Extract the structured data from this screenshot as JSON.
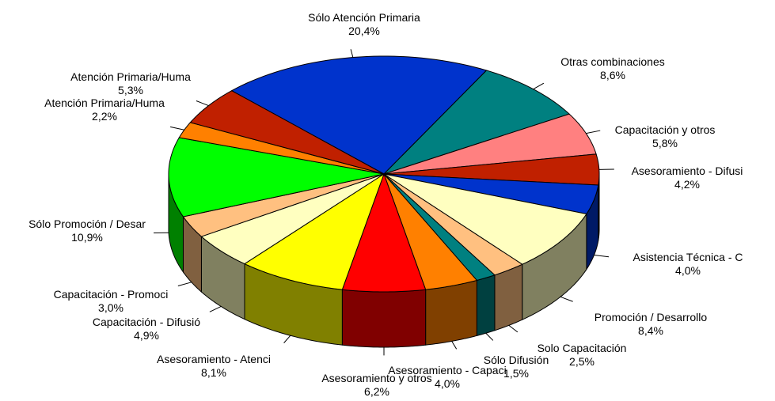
{
  "chart_data": {
    "type": "pie3d",
    "categories": [
      "Sólo Atención Primaria",
      "Otras combinaciones",
      "Capacitación y otros",
      "Asesoramiento - Difusi",
      "Asistencia Técnica - C",
      "Promoción / Desarrollo",
      "Solo Capacitación",
      "Sólo Difusión",
      "Asesoramiento - Capaci",
      "Asesoramiento y otros",
      "Asesoramiento - Atenci",
      "Capacitación - Difusió",
      "Capacitación - Promoci",
      "Sólo Promoción / Desar",
      "Atención Primaria/Huma",
      "Atención Primaria/Huma"
    ],
    "values": [
      20.4,
      8.6,
      5.8,
      4.2,
      4.0,
      8.4,
      2.5,
      1.5,
      4.0,
      6.2,
      8.1,
      4.9,
      3.0,
      10.9,
      2.2,
      5.3
    ],
    "value_labels": [
      "20,4%",
      "8,6%",
      "5,8%",
      "4,2%",
      "4,0%",
      "8,4%",
      "2,5%",
      "1,5%",
      "4,0%",
      "6,2%",
      "8,1%",
      "4,9%",
      "3,0%",
      "10,9%",
      "2,2%",
      "5,3%"
    ],
    "colors": [
      "#0033cc",
      "#008080",
      "#ff8080",
      "#c02000",
      "#0033cc",
      "#ffffc0",
      "#ffc080",
      "#008080",
      "#ff8000",
      "#ff0000",
      "#ffff00",
      "#ffffc0",
      "#ffc080",
      "#00ff00",
      "#ff8000",
      "#c02000"
    ]
  }
}
